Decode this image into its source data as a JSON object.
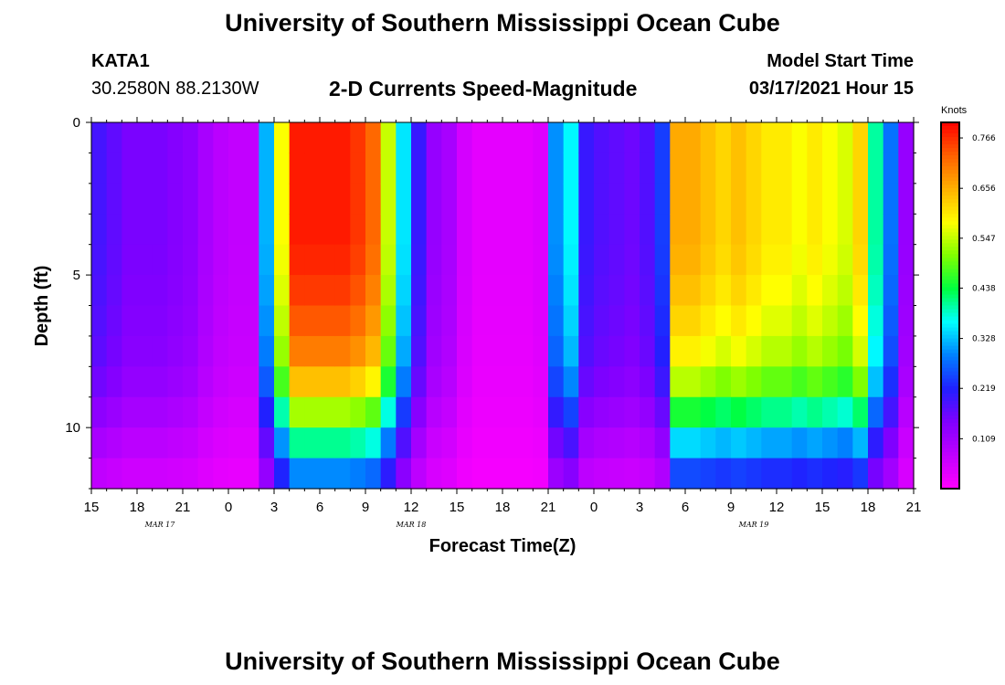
{
  "header": {
    "title": "University of Southern Mississippi Ocean Cube",
    "station_id": "KATA1",
    "station_coords": "30.2580N 88.2130W",
    "chart_title": "2-D Currents Speed-Magnitude",
    "model_start_label": "Model Start Time",
    "model_start_value": "03/17/2021 Hour 15"
  },
  "footer": {
    "title": "University of Southern Mississippi Ocean Cube"
  },
  "chart_data": {
    "type": "heatmap",
    "title": "2-D Currents Speed-Magnitude",
    "xlabel": "Forecast Time(Z)",
    "ylabel": "Depth (ft)",
    "x_tick_labels": [
      "15",
      "18",
      "21",
      "0",
      "3",
      "6",
      "9",
      "12",
      "15",
      "18",
      "21",
      "0",
      "3",
      "6",
      "9",
      "12",
      "15",
      "18",
      "21"
    ],
    "x_hours_range": [
      0,
      54
    ],
    "date_labels": [
      {
        "label": "MAR 17",
        "hour": 4.5
      },
      {
        "label": "MAR 18",
        "hour": 21
      },
      {
        "label": "MAR 19",
        "hour": 43.5
      }
    ],
    "y_ticks": [
      0,
      5,
      10
    ],
    "y_range": [
      0,
      12
    ],
    "colorbar": {
      "units": "Knots",
      "min": 0.0,
      "max": 0.8,
      "tick_values": [
        0.766,
        0.656,
        0.547,
        0.438,
        0.328,
        0.219,
        0.109
      ],
      "tick_labels": [
        "0.766",
        "0.656",
        "0.547",
        "0.438",
        "0.328",
        "0.219",
        "0.109"
      ],
      "colors": [
        "#ff00ff",
        "#c000ff",
        "#8000ff",
        "#2020ff",
        "#0080ff",
        "#00ffff",
        "#00ff40",
        "#80ff00",
        "#ffff00",
        "#ffb000",
        "#ff6000",
        "#ff0000"
      ]
    },
    "depth_levels_ft": [
      0,
      1,
      2,
      3,
      4,
      5,
      6,
      7,
      8,
      9,
      10,
      11
    ],
    "time_steps_hours": [
      0,
      1,
      2,
      3,
      4,
      5,
      6,
      7,
      8,
      9,
      10,
      11,
      12,
      13,
      14,
      15,
      16,
      17,
      18,
      19,
      20,
      21,
      22,
      23,
      24,
      25,
      26,
      27,
      28,
      29,
      30,
      31,
      32,
      33,
      34,
      35,
      36,
      37,
      38,
      39,
      40,
      41,
      42,
      43,
      44,
      45,
      46,
      47,
      48,
      49,
      50,
      51,
      52,
      53
    ],
    "surface_speed_knots": [
      0.19,
      0.17,
      0.15,
      0.15,
      0.15,
      0.14,
      0.13,
      0.1,
      0.08,
      0.07,
      0.07,
      0.32,
      0.58,
      0.78,
      0.78,
      0.78,
      0.78,
      0.76,
      0.72,
      0.55,
      0.35,
      0.2,
      0.12,
      0.1,
      0.05,
      0.03,
      0.03,
      0.03,
      0.03,
      0.04,
      0.3,
      0.36,
      0.2,
      0.18,
      0.17,
      0.16,
      0.18,
      0.24,
      0.66,
      0.66,
      0.64,
      0.62,
      0.64,
      0.62,
      0.6,
      0.6,
      0.58,
      0.6,
      0.58,
      0.56,
      0.62,
      0.4,
      0.28,
      0.12
    ],
    "depth_profile": [
      1.0,
      1.0,
      1.0,
      1.0,
      0.99,
      0.97,
      0.94,
      0.9,
      0.82,
      0.68,
      0.52,
      0.38
    ]
  }
}
